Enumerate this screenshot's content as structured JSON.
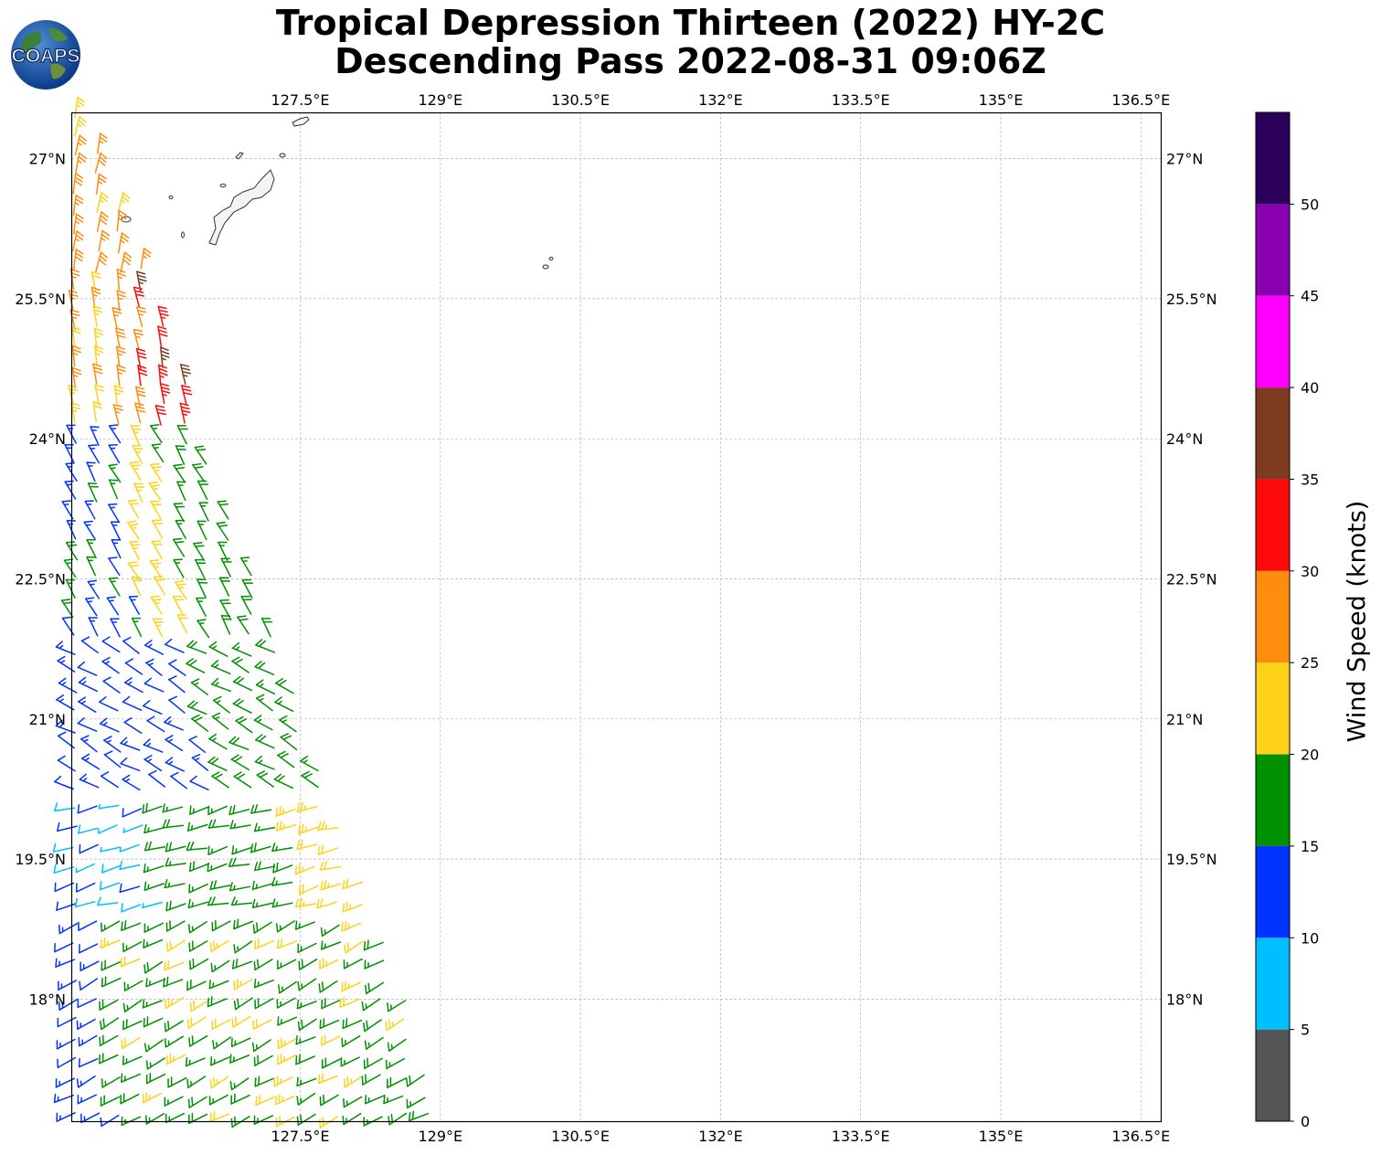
{
  "title": {
    "line1": "Tropical Depression Thirteen (2022) HY-2C",
    "line2": "Descending Pass 2022-08-31 09:06Z"
  },
  "logo": {
    "text": "COAPS",
    "icon": "globe-logo"
  },
  "map": {
    "lon_ticks": [
      "127.5°E",
      "129°E",
      "130.5°E",
      "132°E",
      "133.5°E",
      "135°E",
      "136.5°E"
    ],
    "lat_ticks": [
      "27°N",
      "25.5°N",
      "24°N",
      "22.5°N",
      "21°N",
      "19.5°N",
      "18°N"
    ],
    "lon_range": [
      126.0,
      137.6
    ],
    "lat_range": [
      16.7,
      27.5
    ],
    "grid": true,
    "wind_barbs": "HY-2C scatterometer swath, west edge of map",
    "land_shown": [
      "Okinawa",
      "Daito Islands"
    ]
  },
  "colorbar": {
    "label": "Wind Speed (knots)",
    "ticks": [
      "0",
      "5",
      "10",
      "15",
      "20",
      "25",
      "30",
      "35",
      "40",
      "45",
      "50"
    ],
    "bins": [
      {
        "min": 0,
        "max": 5,
        "color": "#555555"
      },
      {
        "min": 5,
        "max": 10,
        "color": "#00bfff"
      },
      {
        "min": 10,
        "max": 15,
        "color": "#0033ff"
      },
      {
        "min": 15,
        "max": 20,
        "color": "#009000"
      },
      {
        "min": 20,
        "max": 25,
        "color": "#ffd21a"
      },
      {
        "min": 25,
        "max": 30,
        "color": "#ff8c0d"
      },
      {
        "min": 30,
        "max": 35,
        "color": "#ff0a0a"
      },
      {
        "min": 35,
        "max": 40,
        "color": "#7f3a22"
      },
      {
        "min": 40,
        "max": 45,
        "color": "#ff00ff"
      },
      {
        "min": 45,
        "max": 50,
        "color": "#8800b0"
      },
      {
        "min": 50,
        "max": 55,
        "color": "#2b005a"
      }
    ]
  }
}
